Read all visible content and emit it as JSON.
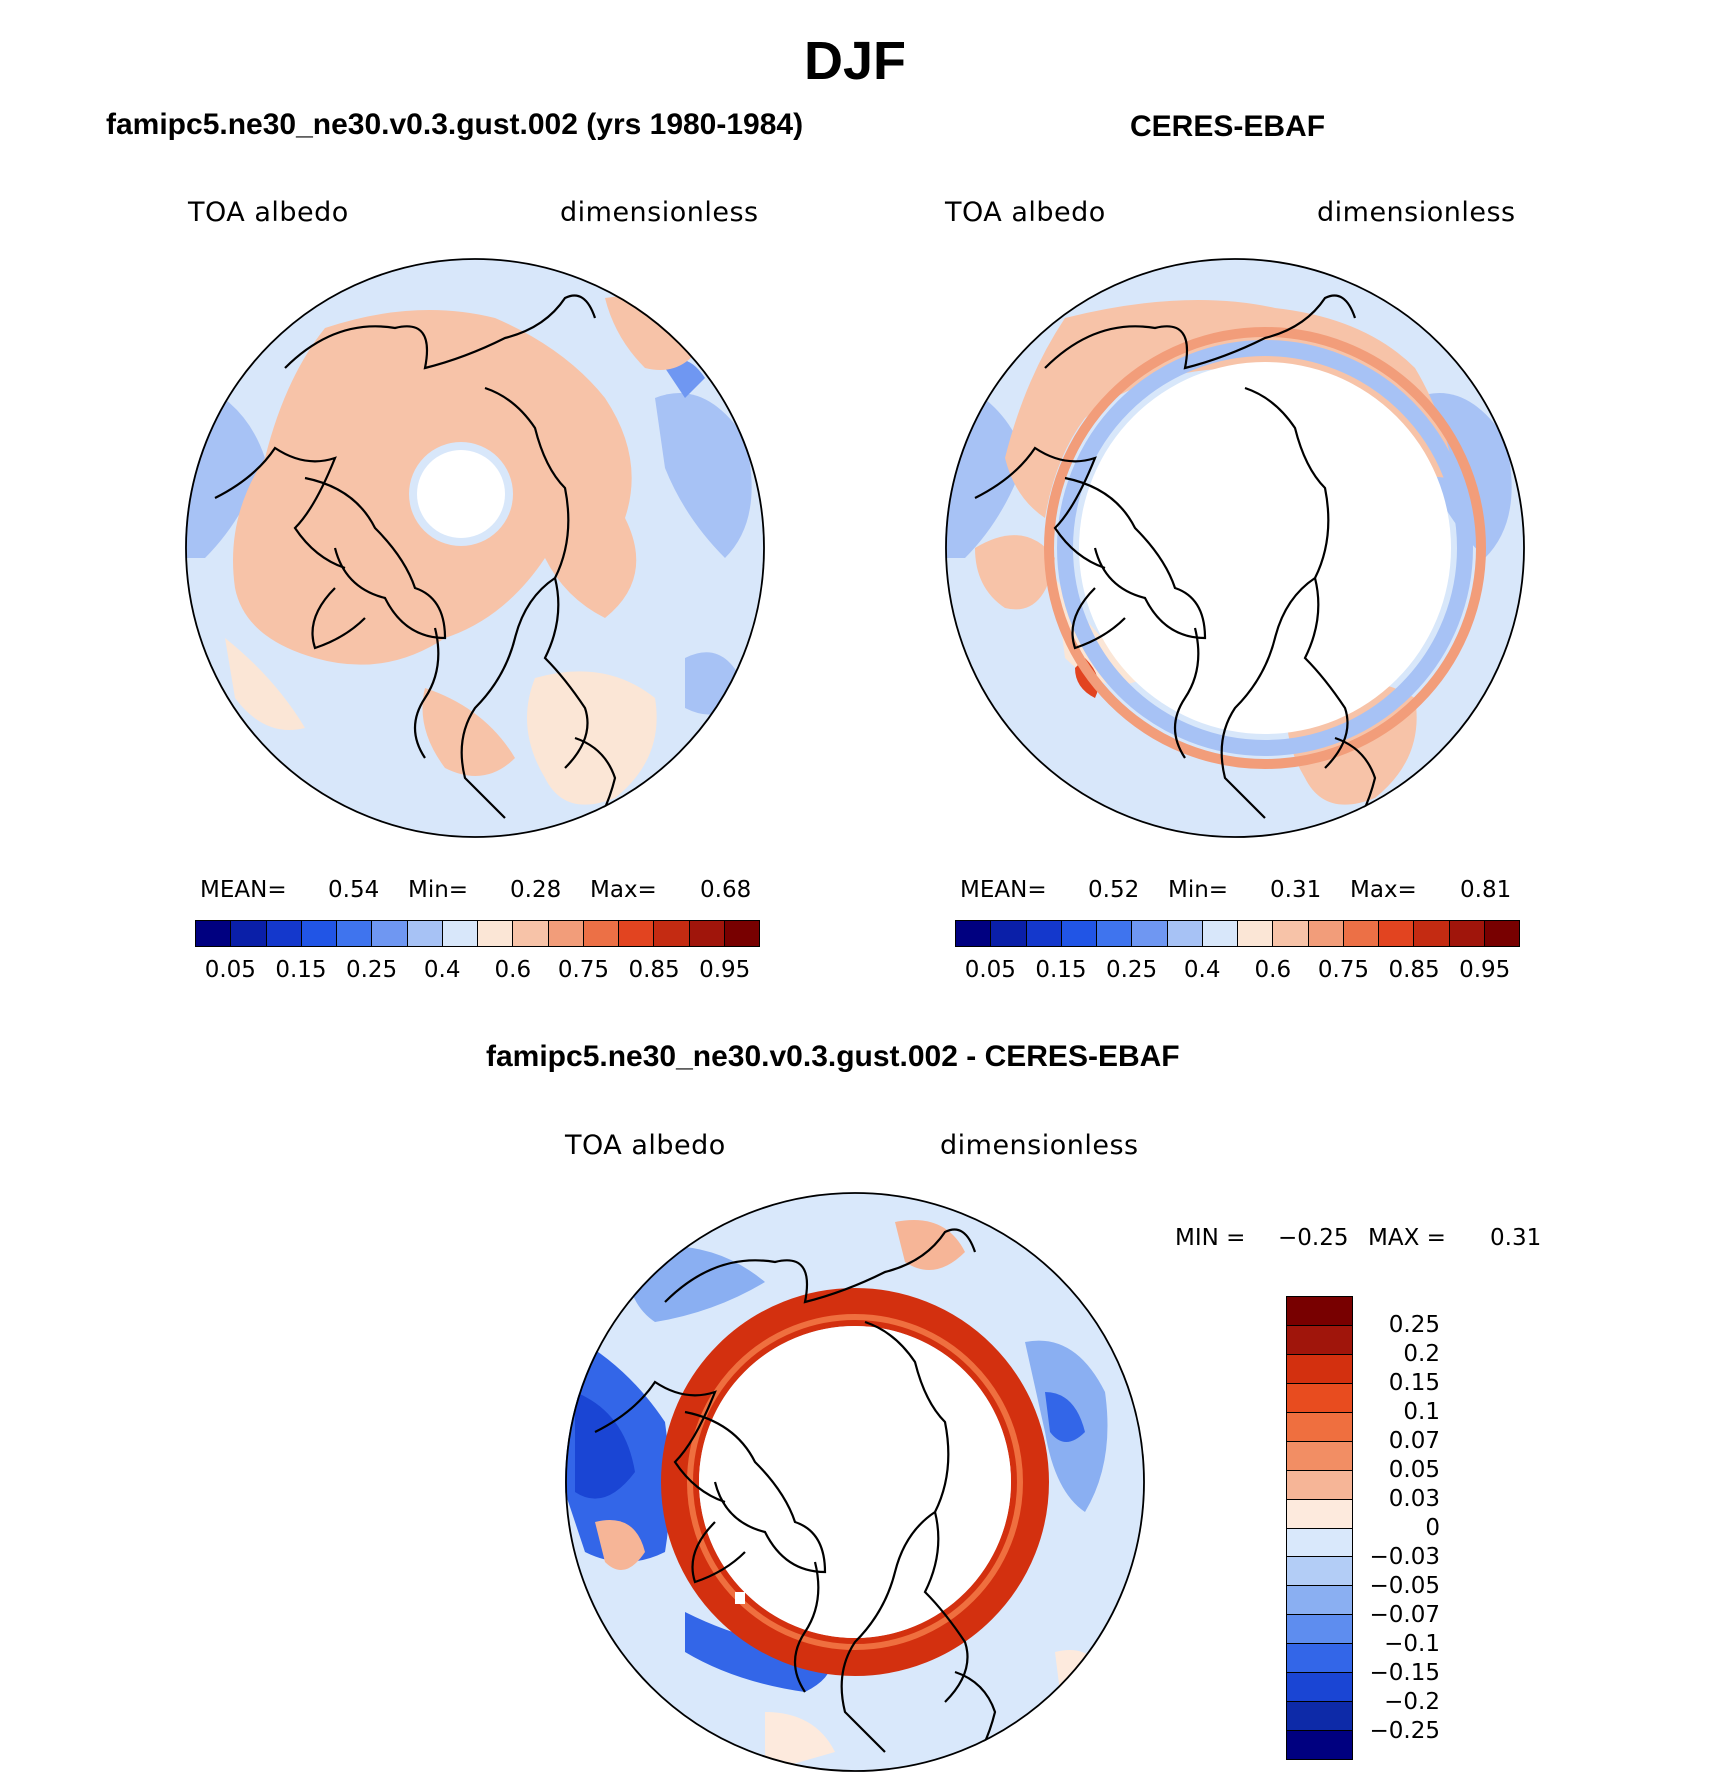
{
  "figure": {
    "title": "DJF"
  },
  "panels": [
    {
      "title": "famipc5.ne30_ne30.v0.3.gust.002 (yrs 1980-1984)",
      "left_label": "TOA albedo",
      "right_label": "dimensionless",
      "stats": {
        "mean_label": "MEAN=",
        "mean": "0.54",
        "min_label": "Min=",
        "min": "0.28",
        "max_label": "Max=",
        "max": "0.68"
      }
    },
    {
      "title": "CERES-EBAF",
      "left_label": "TOA albedo",
      "right_label": "dimensionless",
      "stats": {
        "mean_label": "MEAN=",
        "mean": "0.52",
        "min_label": "Min=",
        "min": "0.31",
        "max_label": "Max=",
        "max": "0.81"
      }
    },
    {
      "title": "famipc5.ne30_ne30.v0.3.gust.002 - CERES-EBAF",
      "left_label": "TOA albedo",
      "right_label": "dimensionless",
      "stats": {
        "min_label": "MIN =",
        "min": "−0.25",
        "max_label": "MAX =",
        "max": "0.31"
      }
    }
  ],
  "colorbar_abs": {
    "colors": [
      "#000080",
      "#0a1fa8",
      "#1438cc",
      "#2155e6",
      "#3f74ee",
      "#6f97f2",
      "#a7c2f5",
      "#d8e7fa",
      "#fbe6d6",
      "#f7c3a8",
      "#f29d7a",
      "#ec7046",
      "#e24420",
      "#c42b12",
      "#a0150b",
      "#780000"
    ],
    "ticks": [
      "0.05",
      "0.15",
      "0.25",
      "0.4",
      "0.6",
      "0.75",
      "0.85",
      "0.95"
    ]
  },
  "colorbar_diff": {
    "colors": [
      "#780000",
      "#a0150b",
      "#d3300f",
      "#e84c1f",
      "#ef6f3f",
      "#f28e64",
      "#f6b597",
      "#fdeadd",
      "#d9e8fb",
      "#b3cdf6",
      "#8aaff2",
      "#5e8def",
      "#3366e8",
      "#1a45d4",
      "#0d2aa8",
      "#000080"
    ],
    "ticks": [
      "0.25",
      "0.2",
      "0.15",
      "0.1",
      "0.07",
      "0.05",
      "0.03",
      "0",
      "−0.03",
      "−0.05",
      "−0.07",
      "−0.1",
      "−0.15",
      "−0.2",
      "−0.25"
    ]
  },
  "legend_colors": {
    "peach": "#f7c3a8",
    "light_peach": "#fbe6d6",
    "light_blue": "#d8e7fa",
    "mid_blue": "#a7c2f5",
    "deep_blue": "#3f74ee",
    "red": "#e24420"
  }
}
